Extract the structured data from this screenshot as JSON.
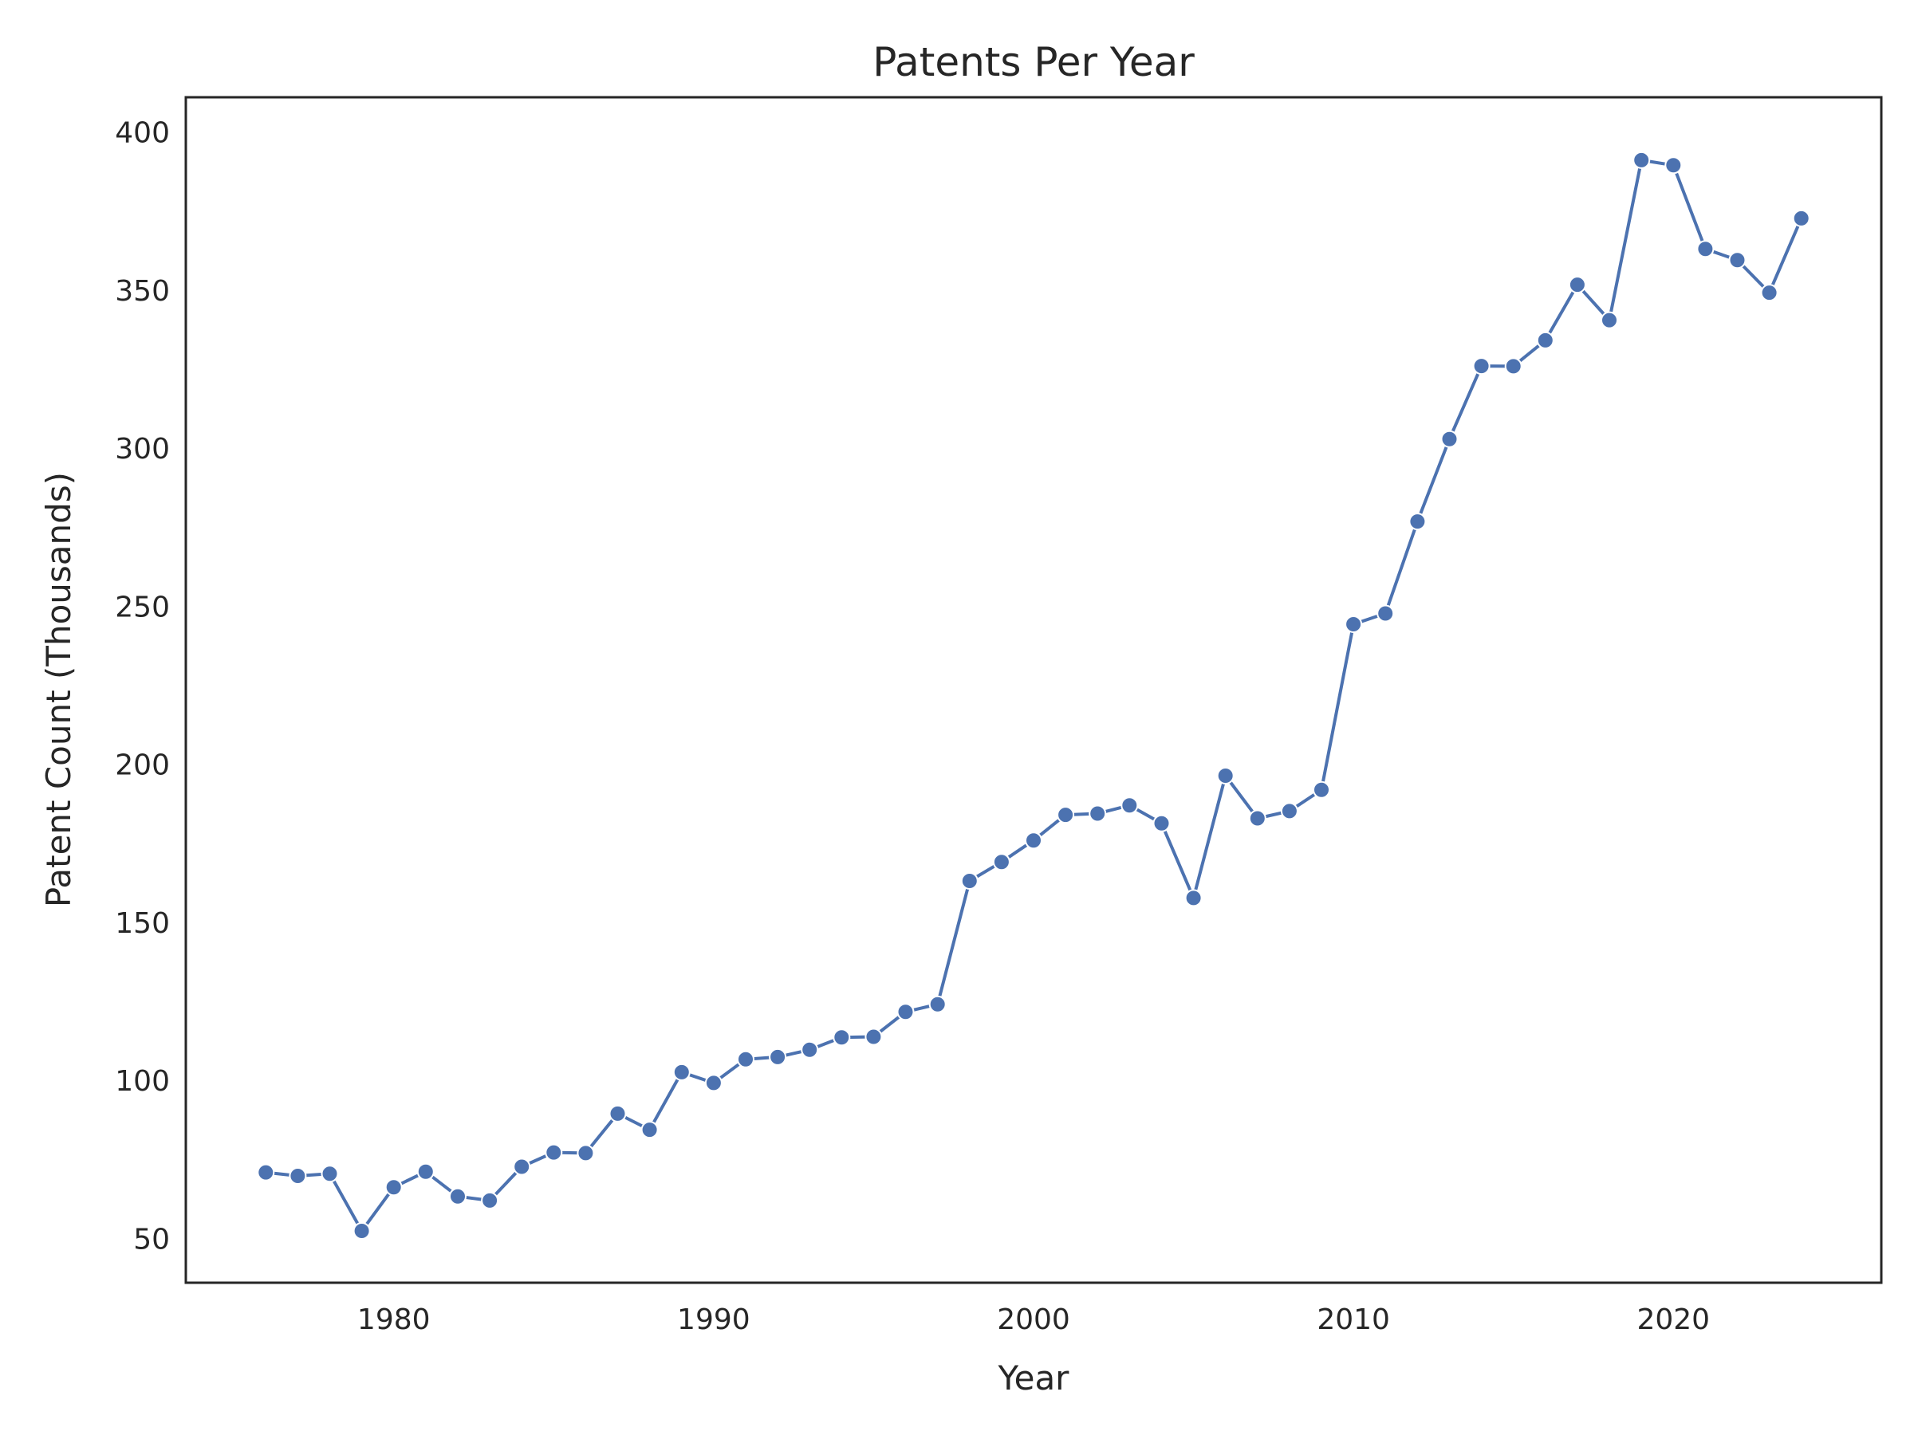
{
  "chart_data": {
    "type": "line",
    "title": "Patents Per Year",
    "xlabel": "Year",
    "ylabel": "Patent Count (Thousands)",
    "xlim": [
      1973.5,
      2026.5
    ],
    "ylim": [
      36,
      411
    ],
    "xticks": [
      1980,
      1990,
      2000,
      2010,
      2020
    ],
    "yticks": [
      50,
      100,
      150,
      200,
      250,
      300,
      350,
      400
    ],
    "grid": false,
    "line_color": "#4c72b0",
    "series": [
      {
        "x": [
          1976,
          1977,
          1978,
          1979,
          1980,
          1981,
          1982,
          1983,
          1984,
          1985,
          1986,
          1987,
          1988,
          1989,
          1990,
          1991,
          1992,
          1993,
          1994,
          1995,
          1996,
          1997,
          1998,
          1999,
          2000,
          2001,
          2002,
          2003,
          2004,
          2005,
          2006,
          2007,
          2008,
          2009,
          2010,
          2011,
          2012,
          2013,
          2014,
          2015,
          2016,
          2017,
          2018,
          2019,
          2020,
          2021,
          2022,
          2023,
          2024
        ],
        "values": [
          70.9,
          69.8,
          70.5,
          52.4,
          66.2,
          71.1,
          63.3,
          62.0,
          72.7,
          77.2,
          77.0,
          89.5,
          84.4,
          102.6,
          99.2,
          106.7,
          107.4,
          109.7,
          113.6,
          113.8,
          121.7,
          124.1,
          163.1,
          169.1,
          175.9,
          184.0,
          184.4,
          187.0,
          181.3,
          157.7,
          196.4,
          182.9,
          185.2,
          191.9,
          244.3,
          247.7,
          276.8,
          302.9,
          326.0,
          325.9,
          334.1,
          351.7,
          340.5,
          391.1,
          389.5,
          363.0,
          359.5,
          349.2,
          372.7
        ]
      }
    ]
  }
}
